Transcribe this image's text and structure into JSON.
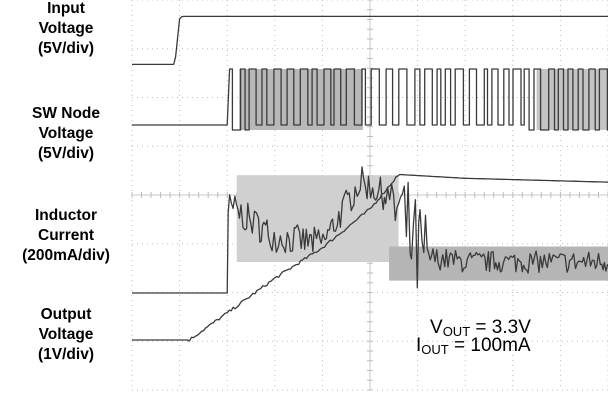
{
  "chart_data": {
    "type": "line",
    "title": "",
    "channels": [
      {
        "name": "Input Voltage",
        "scale": "5V/div"
      },
      {
        "name": "SW Node Voltage",
        "scale": "5V/div"
      },
      {
        "name": "Inductor Current",
        "scale": "200mA/div"
      },
      {
        "name": "Output Voltage",
        "scale": "1V/div"
      }
    ],
    "grid": {
      "horizontal_divisions": 10,
      "vertical_divisions": 8,
      "visible": true
    },
    "series": [
      {
        "name": "Input Voltage",
        "x": [
          0,
          0.9,
          1.0,
          1.05,
          10
        ],
        "y": [
          -0.05,
          -0.05,
          0.9,
          0.95,
          0.95
        ]
      },
      {
        "name": "SW Node Voltage",
        "x": [
          0,
          2.0,
          2.05,
          10
        ],
        "y": [
          0,
          0,
          1.0,
          1.0
        ]
      },
      {
        "name": "Inductor Current",
        "x": [
          0,
          2.0,
          2.05,
          3.0,
          4.0,
          4.8,
          5.5,
          6.0,
          7.0,
          10
        ],
        "y": [
          0,
          0,
          1.4,
          0.9,
          0.8,
          1.8,
          1.5,
          0.6,
          0.5,
          0.5
        ]
      },
      {
        "name": "Output Voltage",
        "x": [
          0,
          1.2,
          2.0,
          3.0,
          4.0,
          5.0,
          5.6,
          7.0,
          10
        ],
        "y": [
          0,
          0,
          0.35,
          0.8,
          1.2,
          1.7,
          2.15,
          2.1,
          2.05
        ]
      }
    ]
  },
  "labels": {
    "ch1": [
      "Input",
      "Voltage",
      "(5V/div)"
    ],
    "ch2": [
      "SW Node",
      "Voltage",
      "(5V/div)"
    ],
    "ch3": [
      "Inductor",
      "Current",
      "(200mA/div)"
    ],
    "ch4": [
      "Output",
      "Voltage",
      "(1V/div)"
    ]
  },
  "annotation": {
    "vout_sym": "V",
    "vout_sub": "OUT",
    "vout_val": " = 3.3V",
    "iout_sym": "I",
    "iout_sub": "OUT",
    "iout_val": " = 100mA"
  }
}
